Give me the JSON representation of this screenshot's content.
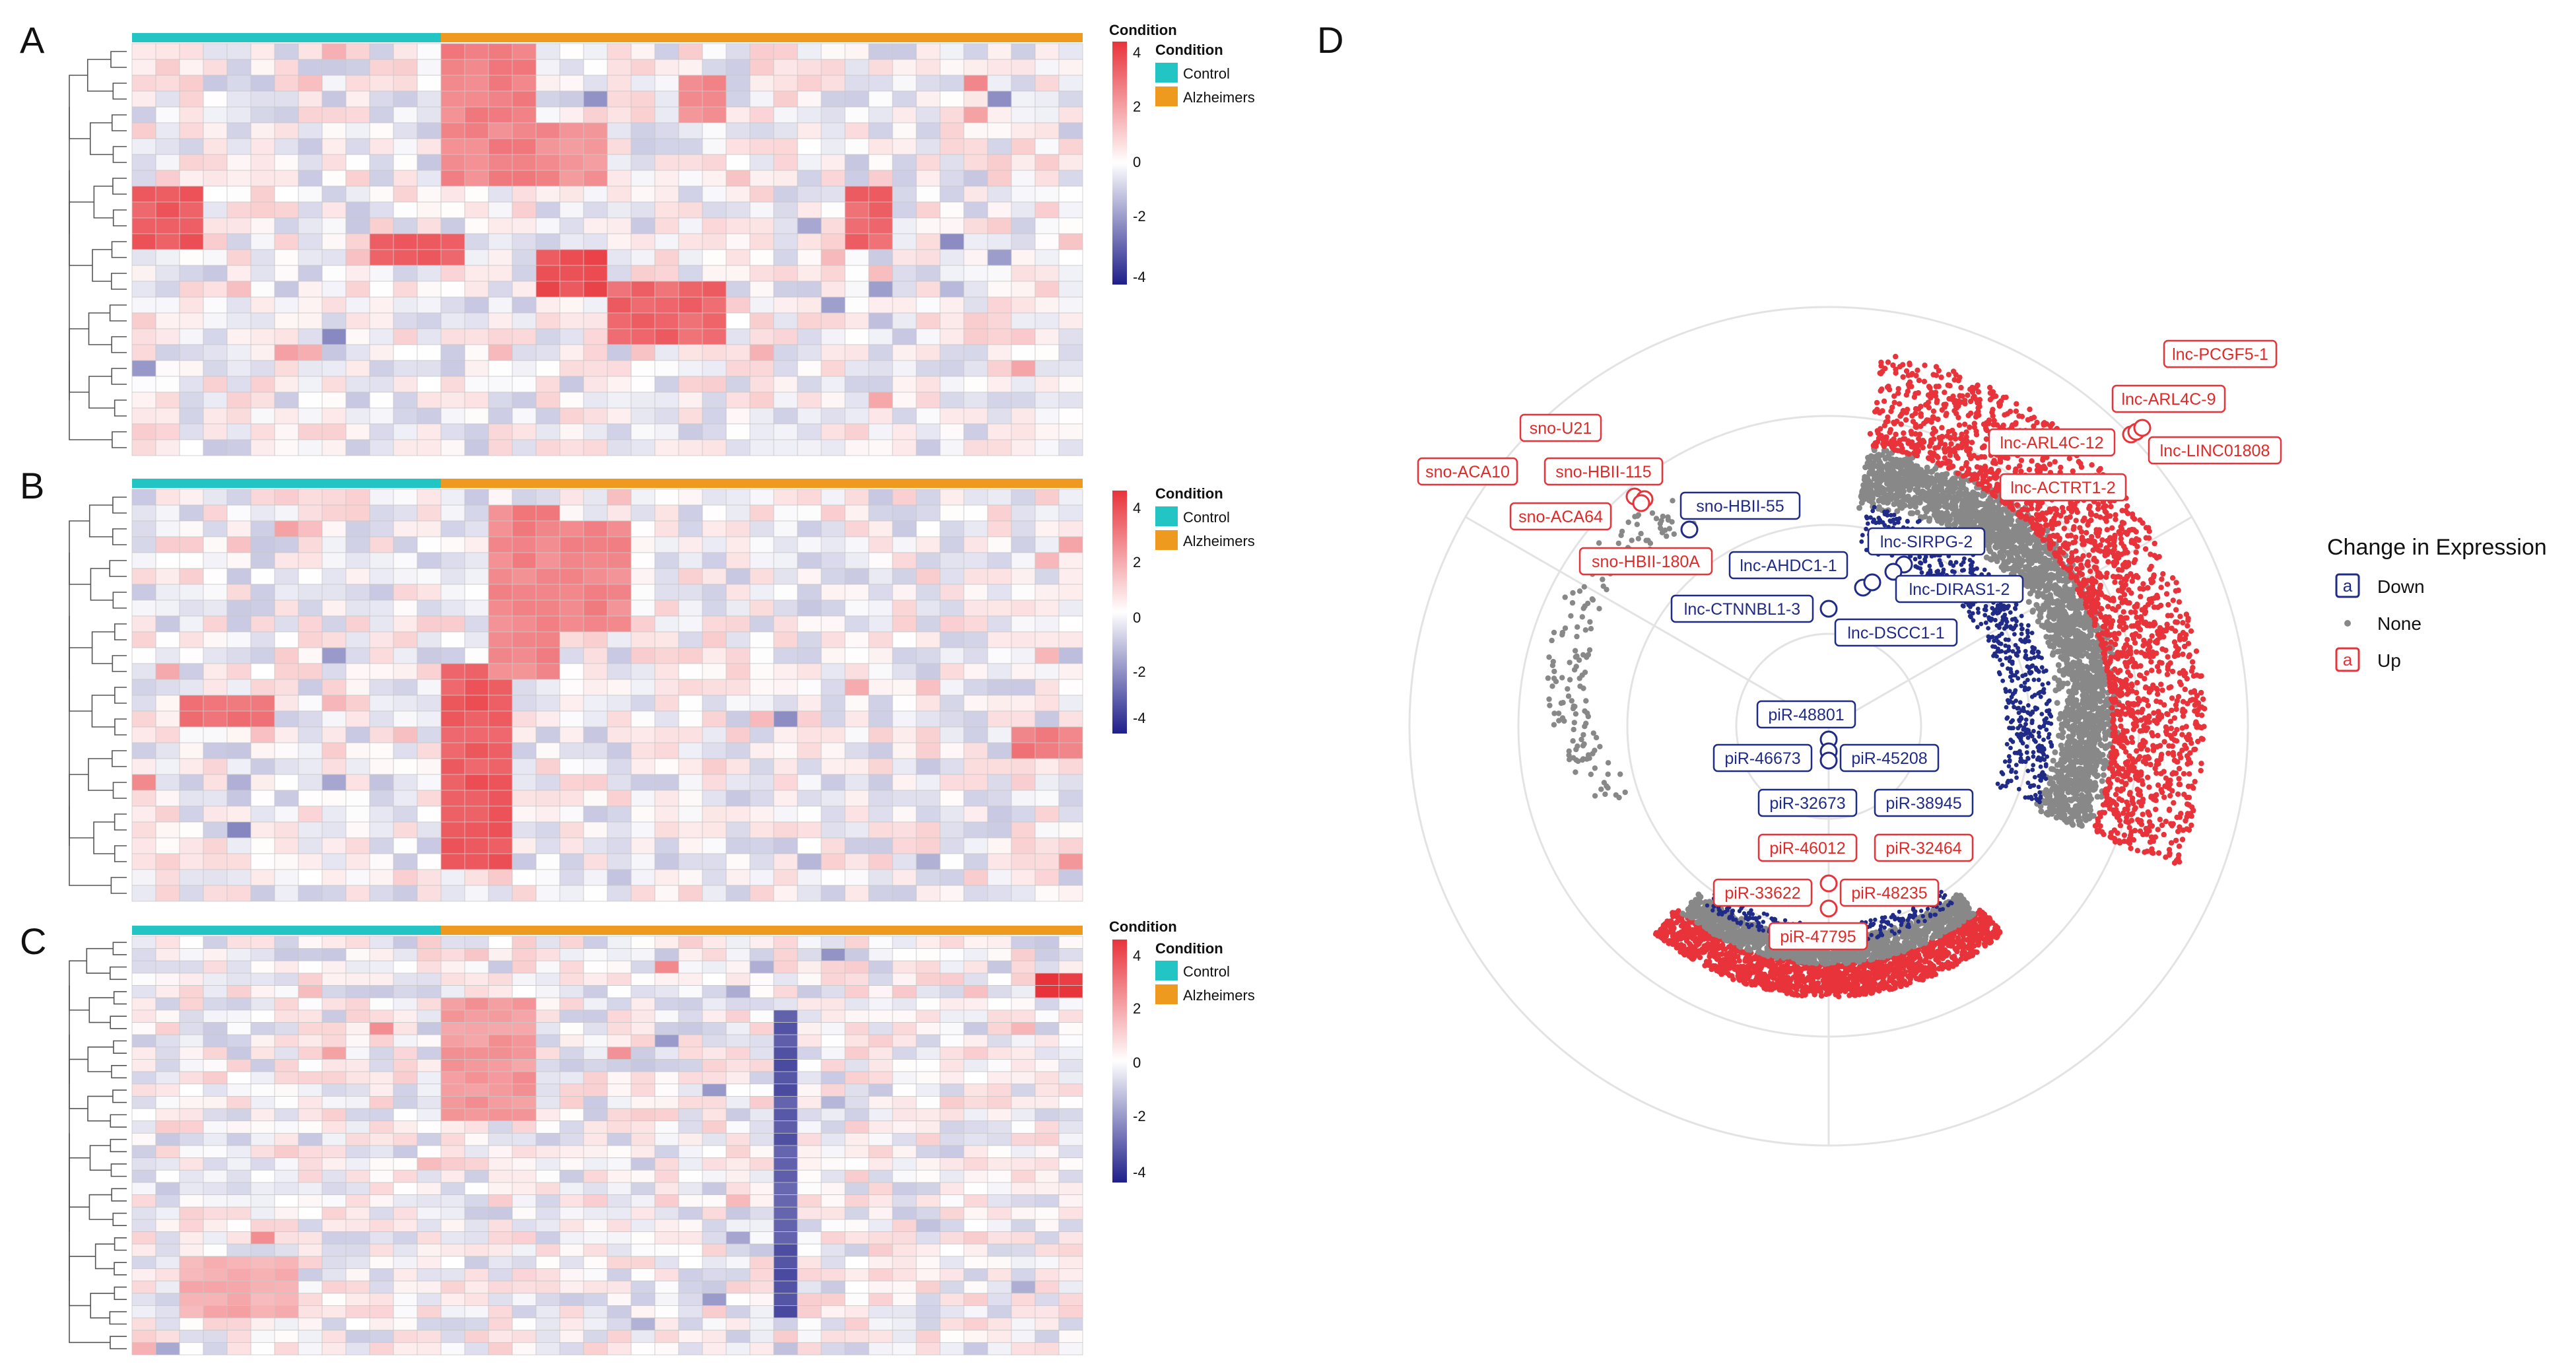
{
  "panels": [
    "A",
    "B",
    "C",
    "D"
  ],
  "heatmap_legend": {
    "scale_title": "Condition",
    "title": "Condition",
    "items": [
      {
        "label": "Control",
        "color": "#22c4c4"
      },
      {
        "label": "Alzheimers",
        "color": "#ee9a1e"
      }
    ],
    "ticks": [
      "4",
      "2",
      "0",
      "-2",
      "-4"
    ],
    "low_color": "#1f1f8a",
    "mid_color": "#ffffff",
    "high_color": "#e8333a"
  },
  "chart_data": [
    {
      "type": "heatmap",
      "panel": "A",
      "rows": 26,
      "cols": 40,
      "value_range": [
        -4,
        4
      ],
      "groups": [
        {
          "name": "Control",
          "count": 13
        },
        {
          "name": "Alzheimers",
          "count": 27
        }
      ],
      "blocks": [
        {
          "rows": [
            9,
            12
          ],
          "cols": [
            0,
            2
          ],
          "value": 3.2
        },
        {
          "rows": [
            12,
            13
          ],
          "cols": [
            10,
            13
          ],
          "value": 3.2
        },
        {
          "rows": [
            13,
            15
          ],
          "cols": [
            17,
            19
          ],
          "value": 3.5
        },
        {
          "rows": [
            15,
            18
          ],
          "cols": [
            20,
            24
          ],
          "value": 3.0
        },
        {
          "rows": [
            0,
            8
          ],
          "cols": [
            13,
            16
          ],
          "value": 2.4
        },
        {
          "rows": [
            5,
            8
          ],
          "cols": [
            17,
            19
          ],
          "value": 2.2
        },
        {
          "rows": [
            2,
            4
          ],
          "cols": [
            23,
            24
          ],
          "value": 2.2
        },
        {
          "rows": [
            9,
            12
          ],
          "cols": [
            30,
            31
          ],
          "value": 3.0
        }
      ]
    },
    {
      "type": "heatmap",
      "panel": "B",
      "rows": 26,
      "cols": 40,
      "value_range": [
        -4,
        4
      ],
      "groups": [
        {
          "name": "Control",
          "count": 13
        },
        {
          "name": "Alzheimers",
          "count": 27
        }
      ],
      "blocks": [
        {
          "rows": [
            13,
            14
          ],
          "cols": [
            2,
            5
          ],
          "value": 2.6
        },
        {
          "rows": [
            11,
            23
          ],
          "cols": [
            13,
            15
          ],
          "value": 3.2
        },
        {
          "rows": [
            1,
            11
          ],
          "cols": [
            15,
            17
          ],
          "value": 2.4
        },
        {
          "rows": [
            2,
            8
          ],
          "cols": [
            18,
            20
          ],
          "value": 2.3
        },
        {
          "rows": [
            15,
            16
          ],
          "cols": [
            37,
            39
          ],
          "value": 2.6
        }
      ]
    },
    {
      "type": "heatmap",
      "panel": "C",
      "rows": 34,
      "cols": 40,
      "value_range": [
        -4,
        4
      ],
      "groups": [
        {
          "name": "Control",
          "count": 13
        },
        {
          "name": "Alzheimers",
          "count": 27
        }
      ],
      "blocks": [
        {
          "rows": [
            3,
            4
          ],
          "cols": [
            38,
            39
          ],
          "value": 4.0
        },
        {
          "rows": [
            5,
            14
          ],
          "cols": [
            13,
            16
          ],
          "value": 2.0
        },
        {
          "rows": [
            6,
            30
          ],
          "cols": [
            27,
            27
          ],
          "value": -3.0
        },
        {
          "rows": [
            26,
            30
          ],
          "cols": [
            2,
            6
          ],
          "value": 1.6
        }
      ]
    },
    {
      "type": "scatter",
      "panel": "D",
      "series": [
        {
          "name": "Down",
          "color": "#1f2b86"
        },
        {
          "name": "None",
          "color": "#888888"
        },
        {
          "name": "Up",
          "color": "#e8333a"
        }
      ],
      "labels": [
        {
          "text": "lnc-PCGF5-1",
          "group": "Up"
        },
        {
          "text": "lnc-ARL4C-9",
          "group": "Up"
        },
        {
          "text": "lnc-ARL4C-12",
          "group": "Up"
        },
        {
          "text": "lnc-LINC01808",
          "group": "Up"
        },
        {
          "text": "lnc-ACTRT1-2",
          "group": "Up"
        },
        {
          "text": "sno-U21",
          "group": "Up"
        },
        {
          "text": "sno-ACA10",
          "group": "Up"
        },
        {
          "text": "sno-HBII-115",
          "group": "Up"
        },
        {
          "text": "sno-ACA64",
          "group": "Up"
        },
        {
          "text": "sno-HBII-180A",
          "group": "Up"
        },
        {
          "text": "sno-HBII-55",
          "group": "Down"
        },
        {
          "text": "lnc-SIRPG-2",
          "group": "Down"
        },
        {
          "text": "lnc-AHDC1-1",
          "group": "Down"
        },
        {
          "text": "lnc-DIRAS1-2",
          "group": "Down"
        },
        {
          "text": "lnc-CTNNBL1-3",
          "group": "Down"
        },
        {
          "text": "lnc-DSCC1-1",
          "group": "Down"
        },
        {
          "text": "piR-48801",
          "group": "Down"
        },
        {
          "text": "piR-46673",
          "group": "Down"
        },
        {
          "text": "piR-45208",
          "group": "Down"
        },
        {
          "text": "piR-32673",
          "group": "Down"
        },
        {
          "text": "piR-38945",
          "group": "Down"
        },
        {
          "text": "piR-46012",
          "group": "Up"
        },
        {
          "text": "piR-32464",
          "group": "Up"
        },
        {
          "text": "piR-33622",
          "group": "Up"
        },
        {
          "text": "piR-48235",
          "group": "Up"
        },
        {
          "text": "piR-47795",
          "group": "Up"
        }
      ],
      "legend": {
        "title": "Change in Expression",
        "items": [
          {
            "symbol": "a",
            "label": "Down",
            "color": "#1f2b86"
          },
          {
            "symbol": "",
            "label": "None",
            "color": "#888888"
          },
          {
            "symbol": "a",
            "label": "Up",
            "color": "#e8333a"
          }
        ]
      }
    }
  ]
}
